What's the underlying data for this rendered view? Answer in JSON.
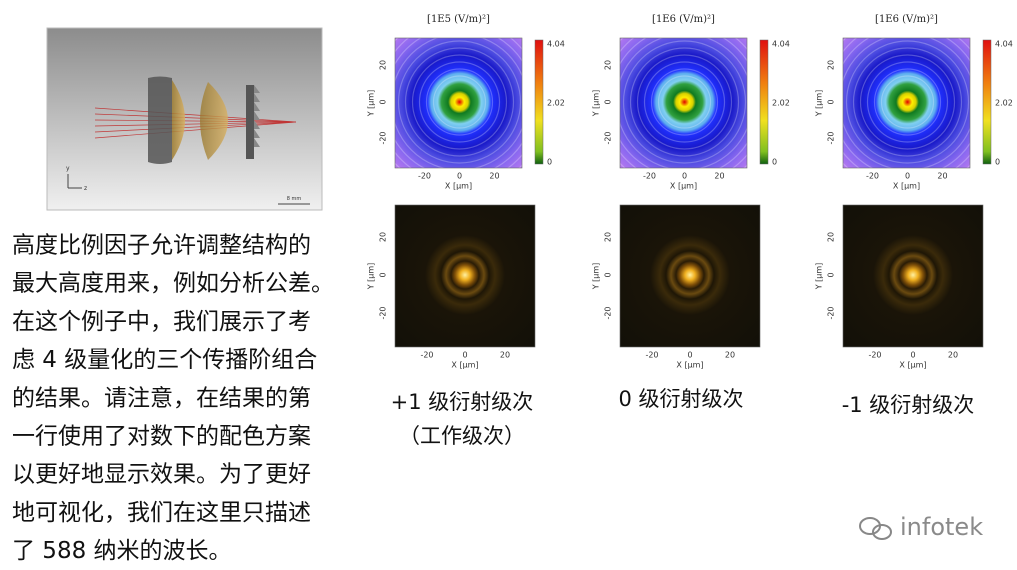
{
  "paragraph": {
    "lines": [
      "高度比例因子允许调整结构的",
      "最大高度用来，例如分析公差。",
      "在这个例子中，我们展示了考",
      "虑 4 级量化的三个传播阶组合",
      "的结果。请注意，在结果的第",
      "一行使用了对数下的配色方案",
      "以更好地显示效果。为了更好",
      "地可视化，我们在这里只描述",
      "了 588 纳米的波长。"
    ]
  },
  "lens_figure": {
    "scale_label": "8 mm",
    "axis_y": "y",
    "axis_z": "z"
  },
  "panels": [
    {
      "caption": [
        "+1 级衍射级次",
        "（工作级次）"
      ],
      "field_plot": {
        "unit_label": "[1E5 (V/m)²]",
        "colorbar_ticks": [
          "4.04",
          "2.02",
          "0"
        ],
        "xticks": [
          "-20",
          "0",
          "20"
        ],
        "yticks": [
          "20",
          "0",
          "-20"
        ],
        "xlabel": "X [µm]",
        "ylabel": "Y [µm]"
      },
      "intensity_plot": {
        "xticks": [
          "-20",
          "0",
          "20"
        ],
        "yticks": [
          "20",
          "0",
          "-20"
        ],
        "xlabel": "X [µm]",
        "ylabel": "Y [µm]"
      }
    },
    {
      "caption": [
        "0 级衍射级次"
      ],
      "field_plot": {
        "unit_label": "[1E6 (V/m)²]",
        "colorbar_ticks": [
          "4.04",
          "2.02",
          "0"
        ],
        "xticks": [
          "-20",
          "0",
          "20"
        ],
        "yticks": [
          "20",
          "0",
          "-20"
        ],
        "xlabel": "X [µm]",
        "ylabel": "Y [µm]"
      },
      "intensity_plot": {
        "xticks": [
          "-20",
          "0",
          "20"
        ],
        "yticks": [
          "20",
          "0",
          "-20"
        ],
        "xlabel": "X [µm]",
        "ylabel": "Y [µm]"
      }
    },
    {
      "caption": [
        "-1 级衍射级次"
      ],
      "field_plot": {
        "unit_label": "[1E6 (V/m)²]",
        "colorbar_ticks": [
          "4.04",
          "2.02",
          "0"
        ],
        "xticks": [
          "-20",
          "0",
          "20"
        ],
        "yticks": [
          "20",
          "0",
          "-20"
        ],
        "xlabel": "X [µm]",
        "ylabel": "Y [µm]"
      },
      "intensity_plot": {
        "xticks": [
          "-20",
          "0",
          "20"
        ],
        "yticks": [
          "20",
          "0",
          "-20"
        ],
        "xlabel": "X [µm]",
        "ylabel": "Y [µm]"
      }
    }
  ],
  "watermark": "infotek"
}
